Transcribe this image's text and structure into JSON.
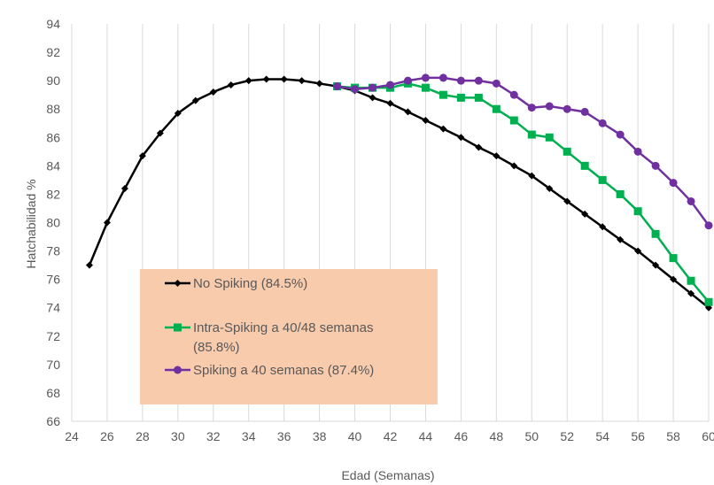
{
  "chart_data": {
    "type": "line",
    "title": "",
    "xlabel": "Edad (Semanas)",
    "ylabel": "Hatchabilidad %",
    "xlim": [
      24,
      60
    ],
    "ylim": [
      66,
      94
    ],
    "xticks": [
      24,
      26,
      28,
      30,
      32,
      34,
      36,
      38,
      40,
      42,
      44,
      46,
      48,
      50,
      52,
      54,
      56,
      58,
      60
    ],
    "yticks": [
      66,
      68,
      70,
      72,
      74,
      76,
      78,
      80,
      82,
      84,
      86,
      88,
      90,
      92,
      94
    ],
    "grid": "vertical",
    "legend_position": "lower-center-left",
    "series": [
      {
        "name": "No Spiking (84.5%)",
        "color": "#000000",
        "marker": "diamond",
        "x": [
          25,
          26,
          27,
          28,
          29,
          30,
          31,
          32,
          33,
          34,
          35,
          36,
          37,
          38,
          39,
          40,
          41,
          42,
          43,
          44,
          45,
          46,
          47,
          48,
          49,
          50,
          51,
          52,
          53,
          54,
          55,
          56,
          57,
          58,
          59,
          60
        ],
        "y": [
          77.0,
          80.0,
          82.4,
          84.7,
          86.3,
          87.7,
          88.6,
          89.2,
          89.7,
          90.0,
          90.1,
          90.1,
          90.0,
          89.8,
          89.6,
          89.3,
          88.8,
          88.4,
          87.8,
          87.2,
          86.6,
          86.0,
          85.3,
          84.7,
          84.0,
          83.3,
          82.4,
          81.5,
          80.6,
          79.7,
          78.8,
          78.0,
          77.0,
          76.0,
          75.0,
          74.0
        ]
      },
      {
        "name": "Intra-Spiking a 40/48 semanas (85.8%)",
        "color": "#00B050",
        "marker": "square",
        "x": [
          39,
          40,
          41,
          42,
          43,
          44,
          45,
          46,
          47,
          48,
          49,
          50,
          51,
          52,
          53,
          54,
          55,
          56,
          57,
          58,
          59,
          60
        ],
        "y": [
          89.6,
          89.5,
          89.5,
          89.5,
          89.8,
          89.5,
          89.0,
          88.8,
          88.8,
          88.0,
          87.2,
          86.2,
          86.0,
          85.0,
          84.0,
          83.0,
          82.0,
          80.8,
          79.2,
          77.5,
          75.9,
          74.4
        ]
      },
      {
        "name": "Spiking a 40 semanas (87.4%)",
        "color": "#7030A0",
        "marker": "circle",
        "x": [
          39,
          40,
          41,
          42,
          43,
          44,
          45,
          46,
          47,
          48,
          49,
          50,
          51,
          52,
          53,
          54,
          55,
          56,
          57,
          58,
          59,
          60
        ],
        "y": [
          89.6,
          89.4,
          89.5,
          89.7,
          90.0,
          90.2,
          90.2,
          90.0,
          90.0,
          89.8,
          89.0,
          88.1,
          88.2,
          88.0,
          87.8,
          87.0,
          86.2,
          85.0,
          84.0,
          82.8,
          81.5,
          79.8
        ]
      }
    ],
    "legend": {
      "background": "#F8CBAD",
      "entries": [
        [
          "No Spiking (84.5%)"
        ],
        [
          "Intra-Spiking a 40/48 semanas",
          "(85.8%)"
        ],
        [
          "Spiking a 40 semanas (87.4%)"
        ]
      ]
    }
  }
}
